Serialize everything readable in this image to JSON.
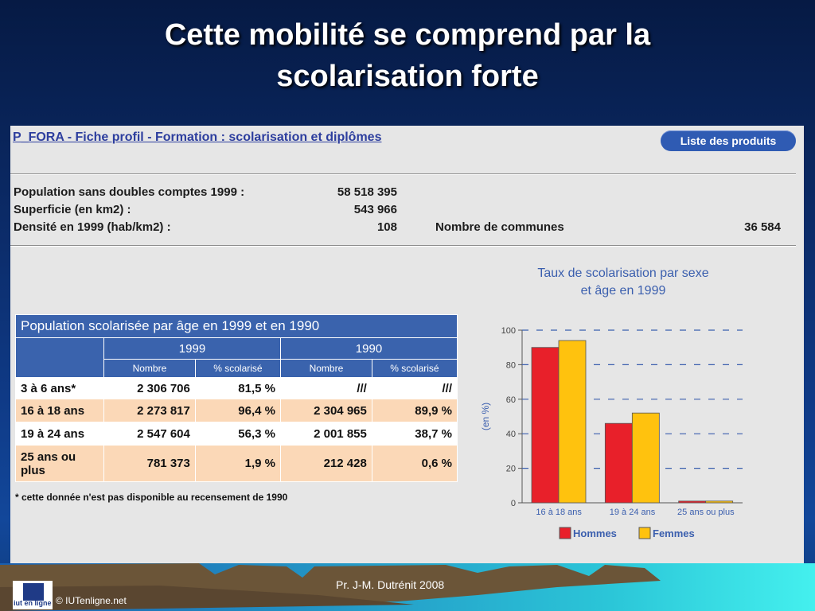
{
  "slide": {
    "title": "Cette mobilité se comprend par la scolarisation forte"
  },
  "panel": {
    "title": "P_FORA - Fiche profil - Formation : scolarisation et diplômes",
    "products_button": "Liste des produits"
  },
  "stats": {
    "population_label": "Population sans doubles comptes 1999 :",
    "population_value": "58 518 395",
    "area_label": "Superficie (en km2) :",
    "area_value": "543 966",
    "density_label": "Densité en 1999 (hab/km2) :",
    "density_value": "108",
    "communes_label": "Nombre de communes",
    "communes_value": "36 584"
  },
  "table": {
    "caption": "Population scolarisée par âge en 1999 et en 1990",
    "year_1999": "1999",
    "year_1990": "1990",
    "col_nombre": "Nombre",
    "col_pct": "% scolarisé",
    "rows": [
      {
        "label": "3 à 6 ans*",
        "n1999": "2 306 706",
        "p1999": "81,5 %",
        "n1990": "///",
        "p1990": "///"
      },
      {
        "label": "16 à 18 ans",
        "n1999": "2 273 817",
        "p1999": "96,4 %",
        "n1990": "2 304 965",
        "p1990": "89,9 %"
      },
      {
        "label": "19 à 24 ans",
        "n1999": "2 547 604",
        "p1999": "56,3 %",
        "n1990": "2 001 855",
        "p1990": "38,7 %"
      },
      {
        "label": "25 ans ou plus",
        "n1999": "781 373",
        "p1999": "1,9 %",
        "n1990": "212 428",
        "p1990": "0,6 %"
      }
    ],
    "footnote": "* cette donnée n'est pas disponible au recensement de 1990"
  },
  "chart_data": {
    "type": "bar",
    "title": "Taux de scolarisation par sexe et âge en 1999",
    "title_lines": [
      "Taux de scolarisation par sexe",
      "et âge en 1999"
    ],
    "ylabel": "(en %)",
    "ylim": [
      0,
      100
    ],
    "yticks": [
      0,
      20,
      40,
      60,
      80,
      100
    ],
    "categories": [
      "16 à 18 ans",
      "19 à 24 ans",
      "25 ans ou plus"
    ],
    "series": [
      {
        "name": "Hommes",
        "color": "#e8202a",
        "values": [
          90,
          46,
          1
        ]
      },
      {
        "name": "Femmes",
        "color": "#ffc20e",
        "values": [
          94,
          52,
          1
        ]
      }
    ],
    "grid": true,
    "legend_position": "bottom"
  },
  "footer": {
    "credit": "Pr.  J-M. Dutrénit  2008",
    "copyright": "© IUTenligne.net",
    "logo_text": "iut en ligne"
  }
}
